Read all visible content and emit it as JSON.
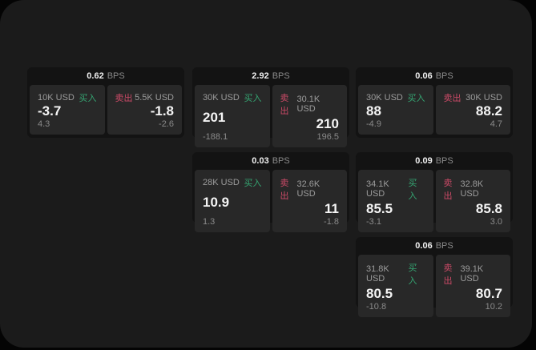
{
  "labels": {
    "bps_suffix": "BPS",
    "buy": "买入",
    "sell": "卖出"
  },
  "colors": {
    "buy_accent": "#35a572",
    "sell_accent": "#cc4a67",
    "panel_bg": "#1b1b1b",
    "card_bg": "#131313",
    "tile_bg": "#282828"
  },
  "cards": [
    {
      "bps": "0.62",
      "buy": {
        "amount": "10K USD",
        "price": "-3.7",
        "delta": "4.3"
      },
      "sell": {
        "amount": "5.5K USD",
        "price": "-1.8",
        "delta": "-2.6"
      }
    },
    {
      "bps": "2.92",
      "buy": {
        "amount": "30K USD",
        "price": "201",
        "delta": "-188.1"
      },
      "sell": {
        "amount": "30.1K USD",
        "price": "210",
        "delta": "196.5"
      }
    },
    {
      "bps": "0.06",
      "buy": {
        "amount": "30K USD",
        "price": "88",
        "delta": "-4.9"
      },
      "sell": {
        "amount": "30K USD",
        "price": "88.2",
        "delta": "4.7"
      }
    },
    {
      "bps": "0.03",
      "buy": {
        "amount": "28K USD",
        "price": "10.9",
        "delta": "1.3"
      },
      "sell": {
        "amount": "32.6K USD",
        "price": "11",
        "delta": "-1.8"
      }
    },
    {
      "bps": "0.09",
      "buy": {
        "amount": "34.1K USD",
        "price": "85.5",
        "delta": "-3.1"
      },
      "sell": {
        "amount": "32.8K USD",
        "price": "85.8",
        "delta": "3.0"
      }
    },
    {
      "bps": "0.06",
      "buy": {
        "amount": "31.8K USD",
        "price": "80.5",
        "delta": "-10.8"
      },
      "sell": {
        "amount": "39.1K USD",
        "price": "80.7",
        "delta": "10.2"
      }
    }
  ]
}
